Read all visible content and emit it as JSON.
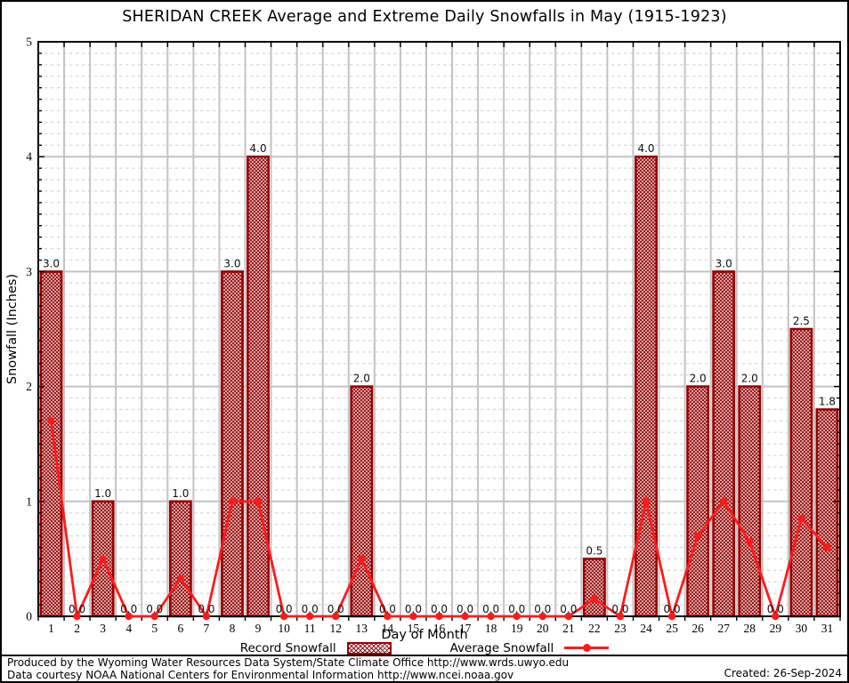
{
  "chart_data": {
    "type": "bar",
    "title": "SHERIDAN CREEK Average and Extreme Daily Snowfalls in May (1915-1923)",
    "xlabel": "Day of Month",
    "ylabel": "Snowfall (Inches)",
    "ylim": [
      0,
      5
    ],
    "y_major_ticks": [
      0,
      1,
      2,
      3,
      4,
      5
    ],
    "y_minor_step": 0.1,
    "grid": {
      "major": true,
      "minor_dashed": true,
      "vertical_per_day": true
    },
    "legend_position": "bottom-center",
    "categories": [
      1,
      2,
      3,
      4,
      5,
      6,
      7,
      8,
      9,
      10,
      11,
      12,
      13,
      14,
      15,
      16,
      17,
      18,
      19,
      20,
      21,
      22,
      23,
      24,
      25,
      26,
      27,
      28,
      29,
      30,
      31
    ],
    "series": [
      {
        "name": "Record Snowfall",
        "type": "bar",
        "values": [
          3.0,
          0.0,
          1.0,
          0.0,
          0.0,
          1.0,
          0.0,
          3.0,
          4.0,
          0.0,
          0.0,
          0.0,
          2.0,
          0.0,
          0.0,
          0.0,
          0.0,
          0.0,
          0.0,
          0.0,
          0.0,
          0.5,
          0.0,
          4.0,
          0.0,
          2.0,
          3.0,
          2.0,
          0.0,
          2.5,
          1.8
        ],
        "value_labels_shown": true
      },
      {
        "name": "Average Snowfall",
        "type": "line",
        "values": [
          1.7,
          0,
          0.5,
          0,
          0,
          0.33,
          0,
          1.0,
          1.0,
          0,
          0,
          0,
          0.5,
          0,
          0,
          0,
          0,
          0,
          0,
          0,
          0,
          0.15,
          0,
          1.0,
          0,
          0.7,
          1.0,
          0.65,
          0,
          0.85,
          0.6
        ]
      }
    ],
    "colors": {
      "bar_border": "#990000",
      "bar_hatch": "#9b1414",
      "line": "#ff1a1a",
      "grid_major": "#c3c3c3",
      "grid_minor": "#d9d9d9",
      "axis": "#000000"
    }
  },
  "footer": {
    "line1": "Produced by the Wyoming Water Resources Data System/State Climate Office http://www.wrds.uwyo.edu",
    "line2": "Data courtesy NOAA National Centers for Environmental Information http://www.ncei.noaa.gov",
    "created": "Created: 26-Sep-2024"
  }
}
